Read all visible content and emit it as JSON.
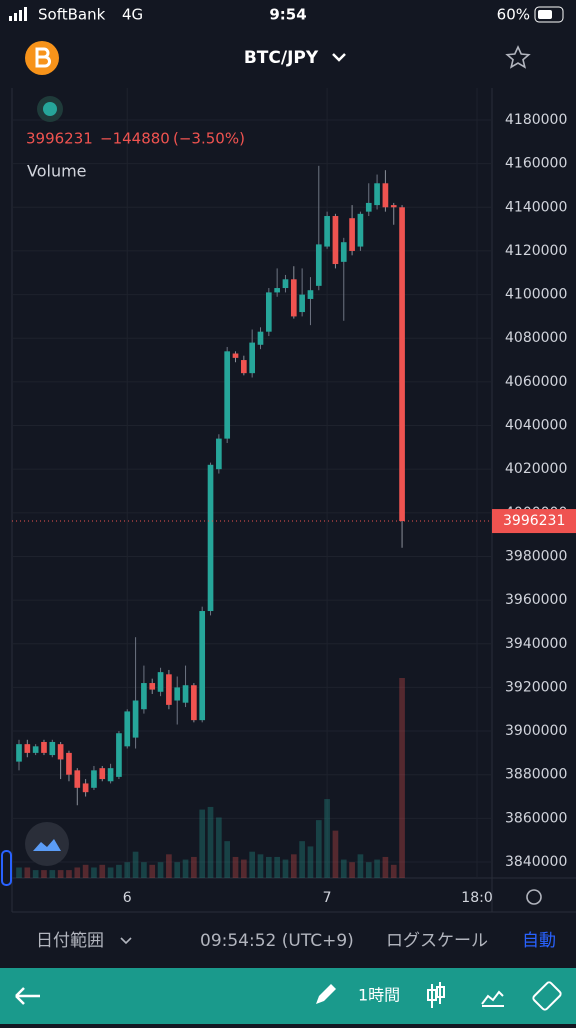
{
  "status_bar": {
    "carrier": "SoftBank",
    "network": "4G",
    "time": "9:54",
    "battery": "60%"
  },
  "header": {
    "pair": "BTC/JPY"
  },
  "chart_data": {
    "type": "candlestick",
    "indicator": "Volume",
    "last_price": 3996231,
    "change": {
      "value": -144880,
      "label": "−144880"
    },
    "change_pct": {
      "value": -3.5,
      "label": "(−3.50%)"
    },
    "up_color": "#26a69a",
    "down_color": "#ef5350",
    "grid": true,
    "x": [
      0,
      1,
      2,
      3,
      4,
      5,
      6,
      7,
      8,
      9,
      10,
      11,
      12,
      13,
      14,
      15,
      16,
      17,
      18,
      19,
      20,
      21,
      22,
      23,
      24,
      25,
      26,
      27,
      28,
      29,
      30,
      31,
      32,
      33,
      34,
      35,
      36,
      37,
      38,
      39,
      40,
      41,
      42,
      43,
      44,
      45,
      46
    ],
    "open": [
      3886000,
      3894000,
      3890000,
      3895000,
      3889000,
      3894000,
      3890000,
      3882000,
      3876000,
      3874000,
      3883000,
      3877000,
      3879000,
      3893000,
      3897000,
      3910000,
      3922000,
      3918000,
      3926000,
      3914000,
      3913000,
      3921000,
      3905000,
      3955000,
      4020000,
      4034000,
      4073000,
      4070000,
      4064000,
      4077000,
      4083000,
      4101000,
      4103000,
      4107000,
      4092000,
      4098000,
      4104000,
      4122000,
      4136000,
      4115000,
      4135000,
      4122000,
      4138000,
      4141000,
      4151000,
      4141000,
      4140000
    ],
    "high": [
      3896000,
      3896000,
      3894000,
      3896000,
      3896000,
      3895000,
      3891000,
      3883000,
      3878000,
      3884000,
      3884000,
      3885000,
      3900000,
      3910000,
      3943000,
      3930000,
      3924000,
      3929000,
      3928000,
      3925000,
      3930000,
      3922000,
      3957000,
      4023000,
      4036000,
      4076000,
      4074000,
      4072000,
      4084000,
      4085000,
      4103000,
      4112000,
      4109000,
      4113000,
      4112000,
      4108000,
      4159000,
      4138000,
      4137000,
      4126000,
      4141000,
      4138000,
      4151000,
      4155000,
      4157000,
      4142000,
      4141000
    ],
    "low": [
      3882000,
      3888000,
      3889000,
      3889000,
      3888000,
      3878000,
      3877000,
      3866000,
      3870000,
      3873000,
      3877000,
      3876000,
      3878000,
      3892000,
      3892000,
      3908000,
      3917000,
      3916000,
      3910000,
      3903000,
      3911000,
      3904000,
      3904000,
      3953000,
      4018000,
      4032000,
      4069000,
      4063000,
      4062000,
      4075000,
      4081000,
      4099000,
      4101000,
      4089000,
      4090000,
      4086000,
      4102000,
      4121000,
      4112000,
      4088000,
      4118000,
      4120000,
      4136000,
      4139000,
      4138000,
      4132000,
      3984000
    ],
    "close": [
      3894000,
      3890000,
      3893000,
      3890000,
      3895000,
      3887000,
      3880000,
      3874000,
      3872000,
      3882000,
      3878000,
      3883000,
      3899000,
      3909000,
      3914000,
      3922000,
      3919000,
      3927000,
      3912000,
      3920000,
      3921000,
      3905000,
      3955000,
      4022000,
      4034000,
      4074000,
      4071000,
      4064000,
      4078000,
      4083000,
      4101000,
      4103000,
      4107000,
      4090000,
      4100000,
      4102000,
      4123000,
      4136000,
      4114000,
      4124000,
      4120000,
      4137000,
      4142000,
      4151000,
      4140000,
      4140000,
      3996231
    ],
    "volume": [
      4,
      4,
      3,
      3,
      3,
      3,
      3,
      4,
      5,
      4,
      5,
      4,
      5,
      6,
      10,
      6,
      5,
      6,
      9,
      6,
      7,
      8,
      26,
      27,
      23,
      14,
      8,
      7,
      10,
      9,
      8,
      8,
      7,
      9,
      14,
      12,
      22,
      30,
      18,
      7,
      6,
      9,
      6,
      7,
      8,
      5,
      76
    ],
    "xlim": [
      -0.84,
      56.8
    ],
    "xticks": [
      {
        "value": 13,
        "label": "6"
      },
      {
        "value": 37,
        "label": "7"
      },
      {
        "value": 55,
        "label": "18:0"
      }
    ],
    "ylim": [
      3832670,
      4194660
    ],
    "yticks": [
      3840000,
      3860000,
      3880000,
      3900000,
      3920000,
      3940000,
      3960000,
      3980000,
      4000000,
      4020000,
      4040000,
      4060000,
      4080000,
      4100000,
      4120000,
      4140000,
      4160000,
      4180000
    ]
  },
  "bottom_bar": {
    "date_range": "日付範囲",
    "clock": "09:54:52 (UTC+9)",
    "log_scale": "ログスケール",
    "auto": "自動"
  },
  "toolbar": {
    "interval": "1時間"
  }
}
